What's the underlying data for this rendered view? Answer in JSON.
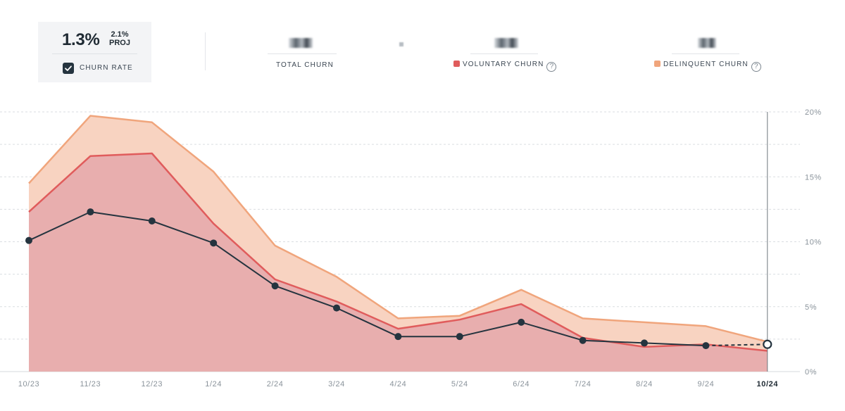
{
  "summary": {
    "rate_value": "1.3%",
    "proj_value": "2.1%",
    "proj_label": "PROJ",
    "checkbox_label": "CHURN RATE",
    "checked": true
  },
  "metrics": [
    {
      "label": "TOTAL CHURN",
      "color": ""
    },
    {
      "label": "VOLUNTARY CHURN",
      "color": "#e05c5c"
    },
    {
      "label": "DELINQUENT CHURN",
      "color": "#f0a57c"
    }
  ],
  "chart_data": {
    "type": "area",
    "categories": [
      "10/23",
      "11/23",
      "12/23",
      "1/24",
      "2/24",
      "3/24",
      "4/24",
      "5/24",
      "6/24",
      "7/24",
      "8/24",
      "9/24",
      "10/24"
    ],
    "highlight_category": "10/24",
    "yticks": [
      "0%",
      "5%",
      "10%",
      "15%",
      "20%"
    ],
    "ylim": [
      0,
      20
    ],
    "grid": true,
    "series": [
      {
        "name": "VOLUNTARY CHURN",
        "color": "#e05c5c",
        "fill": "#e8aeae",
        "values": [
          12.3,
          16.6,
          16.8,
          11.4,
          7.1,
          5.4,
          3.3,
          4.0,
          5.2,
          2.6,
          1.9,
          2.1,
          1.6
        ]
      },
      {
        "name": "DELINQUENT CHURN",
        "color": "#f0a57c",
        "fill": "#f8d3c1",
        "values": [
          14.5,
          19.7,
          19.2,
          15.4,
          9.7,
          7.3,
          4.1,
          4.3,
          6.3,
          4.1,
          3.8,
          3.5,
          2.3
        ]
      },
      {
        "name": "CHURN RATE",
        "color": "#25343f",
        "values": [
          10.1,
          12.3,
          11.6,
          9.9,
          6.6,
          4.9,
          2.7,
          2.7,
          3.8,
          2.4,
          2.2,
          2.0,
          2.1
        ],
        "projected_from_index": 11
      }
    ]
  }
}
